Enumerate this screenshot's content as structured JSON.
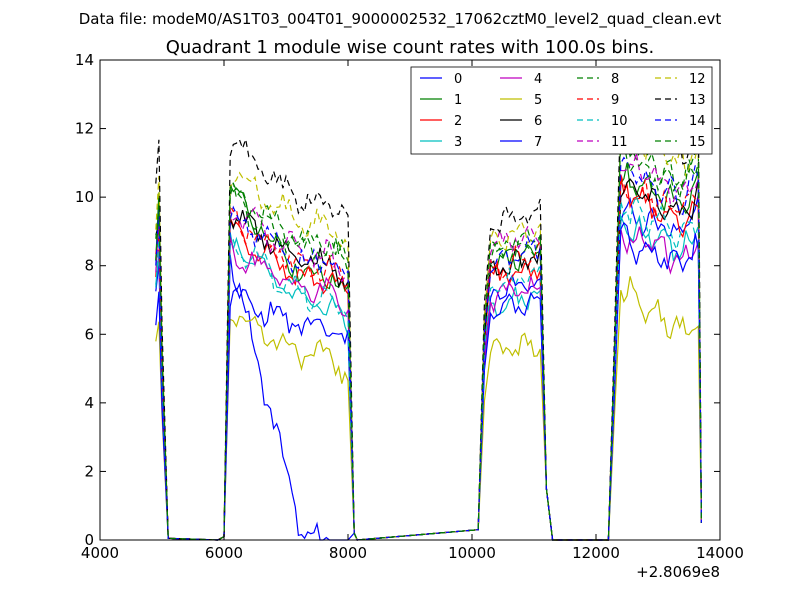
{
  "chart_data": {
    "type": "line",
    "suptitle": "Data file: modeM0/AS1T03_004T01_9000002532_17062cztM0_level2_quad_clean.evt",
    "title": "Quadrant 1 module wise count rates with 100.0s bins.",
    "xlabel": "",
    "ylabel": "",
    "x_offset_label": "+2.8069e8",
    "xlim": [
      4000,
      14000
    ],
    "ylim": [
      0,
      14
    ],
    "xticks": [
      "4000",
      "6000",
      "8000",
      "10000",
      "12000",
      "14000"
    ],
    "yticks": [
      "0",
      "2",
      "4",
      "6",
      "8",
      "10",
      "12",
      "14"
    ],
    "legend_position": "top-right",
    "series": [
      {
        "name": "0",
        "color": "#0000ff",
        "dash": "solid",
        "base": [
          7.0,
          8.3,
          0,
          0,
          7.2,
          7.5,
          6.8,
          9.6,
          9.2,
          9.0,
          9.7
        ]
      },
      {
        "name": "1",
        "color": "#008000",
        "dash": "solid",
        "base": [
          8.0,
          10.1,
          8.0,
          7.7,
          8.0,
          8.4,
          7.6,
          10.5,
          10.2,
          9.8,
          10.4
        ]
      },
      {
        "name": "2",
        "color": "#ff0000",
        "dash": "solid",
        "base": [
          8.6,
          9.0,
          8.0,
          7.5,
          7.6,
          8.0,
          7.2,
          10.1,
          9.7,
          9.3,
          9.8
        ]
      },
      {
        "name": "3",
        "color": "#00bfbf",
        "dash": "solid",
        "base": [
          7.5,
          8.5,
          7.3,
          6.7,
          6.7,
          7.2,
          6.4,
          9.3,
          8.8,
          8.4,
          8.9
        ]
      },
      {
        "name": "4",
        "color": "#bf00bf",
        "dash": "solid",
        "base": [
          8.3,
          8.4,
          7.6,
          7.2,
          7.0,
          7.4,
          6.8,
          9.0,
          8.6,
          8.2,
          8.7
        ]
      },
      {
        "name": "5",
        "color": "#bfbf00",
        "dash": "solid",
        "base": [
          6.0,
          6.6,
          5.7,
          5.3,
          5.4,
          5.7,
          5.3,
          7.5,
          6.8,
          6.0,
          6.3
        ]
      },
      {
        "name": "6",
        "color": "#000000",
        "dash": "solid",
        "base": [
          8.7,
          9.5,
          8.4,
          8.0,
          7.8,
          8.3,
          7.8,
          10.3,
          10.0,
          9.5,
          10.0
        ]
      },
      {
        "name": "7",
        "color": "#0000ff",
        "dash": "solid",
        "base": [
          6.5,
          7.0,
          6.6,
          6.1,
          6.6,
          7.0,
          6.2,
          8.8,
          8.4,
          8.0,
          8.5
        ]
      },
      {
        "name": "8",
        "color": "#008000",
        "dash": "dashed",
        "base": [
          8.5,
          10.0,
          9.0,
          8.6,
          8.4,
          8.8,
          8.0,
          11.6,
          11.0,
          10.5,
          11.2
        ]
      },
      {
        "name": "9",
        "color": "#ff0000",
        "dash": "dashed",
        "base": [
          7.8,
          9.3,
          8.3,
          7.9,
          8.0,
          8.4,
          7.7,
          10.4,
          10.0,
          9.6,
          10.1
        ]
      },
      {
        "name": "10",
        "color": "#00bfbf",
        "dash": "dashed",
        "base": [
          7.2,
          8.6,
          7.5,
          7.0,
          7.4,
          7.8,
          7.0,
          9.7,
          9.3,
          8.9,
          9.4
        ]
      },
      {
        "name": "11",
        "color": "#bf00bf",
        "dash": "dashed",
        "base": [
          8.1,
          9.6,
          8.6,
          8.2,
          8.6,
          9.0,
          8.2,
          11.0,
          10.6,
          10.2,
          10.7
        ]
      },
      {
        "name": "12",
        "color": "#bfbf00",
        "dash": "dashed",
        "base": [
          9.2,
          10.6,
          9.6,
          9.1,
          8.7,
          9.1,
          8.3,
          12.1,
          11.4,
          10.9,
          11.6
        ]
      },
      {
        "name": "13",
        "color": "#000000",
        "dash": "dashed",
        "base": [
          10.3,
          11.4,
          10.4,
          9.7,
          9.2,
          9.7,
          8.7,
          12.8,
          12.0,
          11.4,
          12.1
        ]
      },
      {
        "name": "14",
        "color": "#0000ff",
        "dash": "dashed",
        "base": [
          8.0,
          9.4,
          8.5,
          8.0,
          8.1,
          8.5,
          7.8,
          10.8,
          10.4,
          10.0,
          10.5
        ]
      },
      {
        "name": "15",
        "color": "#008000",
        "dash": "dashed",
        "base": [
          8.4,
          9.9,
          8.8,
          8.4,
          8.3,
          8.7,
          7.9,
          11.3,
          10.8,
          10.3,
          10.9
        ]
      }
    ],
    "segments": [
      {
        "x_start": 4900,
        "x_end": 5000
      },
      {
        "x_start": 6100,
        "x_end": 8000
      },
      {
        "x_start": 10300,
        "x_end": 11100
      },
      {
        "x_start": 12400,
        "x_end": 13600
      }
    ],
    "zero_gaps": [
      [
        5200,
        5900
      ],
      [
        8200,
        10000
      ],
      [
        11400,
        12100
      ]
    ]
  }
}
